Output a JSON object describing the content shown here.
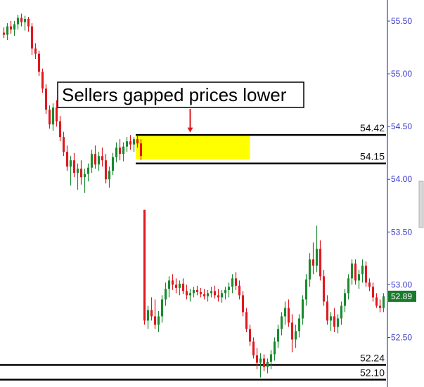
{
  "chart_data": {
    "type": "candlestick",
    "title": "",
    "xlabel": "",
    "ylabel": "",
    "ylim": [
      52.03,
      55.7
    ],
    "y_ticks": [
      {
        "value": 55.5,
        "label": "55.50"
      },
      {
        "value": 55.0,
        "label": "55.00"
      },
      {
        "value": 54.5,
        "label": "54.50"
      },
      {
        "value": 54.0,
        "label": "54.00"
      },
      {
        "value": 53.5,
        "label": "53.50"
      },
      {
        "value": 53.0,
        "label": "53.00"
      },
      {
        "value": 52.5,
        "label": "52.50"
      }
    ],
    "grid": false,
    "colors": {
      "up": "#1a8a2e",
      "down": "#e0191f",
      "axis": "#3a3acd",
      "level": "#000000",
      "highlight": "#ffff00",
      "price_tag": "#1a7a2e"
    },
    "horizontal_levels": [
      {
        "value": 54.42,
        "label": "54.42"
      },
      {
        "value": 54.15,
        "label": "54.15"
      },
      {
        "value": 52.24,
        "label": "52.24"
      },
      {
        "value": 52.1,
        "label": "52.10"
      }
    ],
    "highlight_zone": {
      "x_start": 38,
      "x_end": 70,
      "y_low": 54.19,
      "y_high": 54.42
    },
    "annotation": {
      "text": "Sellers gapped prices lower",
      "arrow_x": 53,
      "arrow_y": 54.43
    },
    "last_price": {
      "value": 52.89,
      "label": "52.89"
    },
    "candles": [
      [
        55.39,
        55.44,
        55.34,
        55.37
      ],
      [
        55.37,
        55.48,
        55.32,
        55.45
      ],
      [
        55.45,
        55.5,
        55.38,
        55.42
      ],
      [
        55.42,
        55.5,
        55.36,
        55.47
      ],
      [
        55.47,
        55.56,
        55.42,
        55.53
      ],
      [
        55.53,
        55.57,
        55.45,
        55.49
      ],
      [
        55.49,
        55.55,
        55.41,
        55.52
      ],
      [
        55.52,
        55.54,
        55.4,
        55.45
      ],
      [
        55.45,
        55.48,
        55.18,
        55.24
      ],
      [
        55.24,
        55.29,
        55.14,
        55.19
      ],
      [
        55.19,
        55.22,
        54.98,
        55.02
      ],
      [
        55.02,
        55.05,
        54.82,
        54.86
      ],
      [
        54.86,
        54.9,
        54.62,
        54.66
      ],
      [
        54.66,
        54.7,
        54.48,
        54.52
      ],
      [
        54.52,
        54.72,
        54.46,
        54.68
      ],
      [
        54.68,
        54.75,
        54.5,
        54.55
      ],
      [
        54.55,
        54.6,
        54.36,
        54.4
      ],
      [
        54.4,
        54.45,
        54.22,
        54.26
      ],
      [
        54.26,
        54.32,
        54.08,
        54.12
      ],
      [
        54.12,
        54.22,
        53.94,
        54.18
      ],
      [
        54.18,
        54.25,
        54.02,
        54.06
      ],
      [
        54.06,
        54.15,
        53.9,
        54.1
      ],
      [
        54.1,
        54.18,
        53.95,
        54.02
      ],
      [
        54.02,
        54.1,
        53.87,
        54.05
      ],
      [
        54.05,
        54.15,
        53.98,
        54.11
      ],
      [
        54.11,
        54.28,
        54.06,
        54.24
      ],
      [
        54.24,
        54.32,
        54.1,
        54.14
      ],
      [
        54.14,
        54.26,
        54.08,
        54.22
      ],
      [
        54.22,
        54.3,
        54.12,
        54.18
      ],
      [
        54.18,
        54.24,
        53.96,
        54.0
      ],
      [
        54.0,
        54.12,
        53.92,
        54.08
      ],
      [
        54.08,
        54.25,
        54.04,
        54.21
      ],
      [
        54.21,
        54.35,
        54.16,
        54.3
      ],
      [
        54.3,
        54.38,
        54.18,
        54.24
      ],
      [
        54.24,
        54.35,
        54.17,
        54.31
      ],
      [
        54.31,
        54.4,
        54.26,
        54.36
      ],
      [
        54.36,
        54.42,
        54.28,
        54.33
      ],
      [
        54.33,
        54.4,
        54.26,
        54.38
      ],
      [
        54.38,
        54.42,
        54.3,
        54.34
      ],
      [
        54.34,
        54.38,
        54.18,
        54.22
      ],
      [
        53.71,
        53.71,
        52.62,
        52.66
      ],
      [
        52.66,
        52.8,
        52.58,
        52.76
      ],
      [
        52.76,
        52.88,
        52.66,
        52.7
      ],
      [
        52.7,
        52.86,
        52.58,
        52.62
      ],
      [
        52.62,
        52.75,
        52.55,
        52.7
      ],
      [
        52.7,
        52.9,
        52.64,
        52.86
      ],
      [
        52.86,
        53.02,
        52.8,
        52.96
      ],
      [
        52.96,
        53.08,
        52.88,
        53.04
      ],
      [
        53.04,
        53.1,
        52.95,
        53.0
      ],
      [
        53.0,
        53.06,
        52.92,
        52.97
      ],
      [
        52.97,
        53.04,
        52.9,
        53.01
      ],
      [
        53.01,
        53.06,
        52.91,
        52.94
      ],
      [
        52.94,
        53.0,
        52.86,
        52.9
      ],
      [
        52.9,
        52.96,
        52.84,
        52.92
      ],
      [
        52.92,
        52.98,
        52.88,
        52.95
      ],
      [
        52.95,
        52.99,
        52.9,
        52.93
      ],
      [
        52.93,
        52.97,
        52.88,
        52.91
      ],
      [
        52.91,
        52.96,
        52.86,
        52.89
      ],
      [
        52.89,
        52.95,
        52.84,
        52.92
      ],
      [
        52.92,
        52.98,
        52.88,
        52.94
      ],
      [
        52.94,
        52.99,
        52.87,
        52.9
      ],
      [
        52.9,
        52.96,
        52.84,
        52.88
      ],
      [
        52.88,
        52.95,
        52.83,
        52.92
      ],
      [
        52.92,
        52.98,
        52.86,
        52.95
      ],
      [
        52.95,
        53.02,
        52.88,
        52.98
      ],
      [
        52.98,
        53.1,
        52.92,
        53.06
      ],
      [
        53.06,
        53.12,
        52.95,
        52.99
      ],
      [
        52.99,
        53.04,
        52.86,
        52.9
      ],
      [
        52.9,
        52.94,
        52.7,
        52.74
      ],
      [
        52.74,
        52.78,
        52.55,
        52.58
      ],
      [
        52.58,
        52.62,
        52.42,
        52.46
      ],
      [
        52.46,
        52.5,
        52.3,
        52.33
      ],
      [
        52.33,
        52.4,
        52.2,
        52.26
      ],
      [
        52.26,
        52.35,
        52.12,
        52.3
      ],
      [
        52.3,
        52.34,
        52.18,
        52.22
      ],
      [
        52.22,
        52.3,
        52.16,
        52.27
      ],
      [
        52.27,
        52.38,
        52.2,
        52.34
      ],
      [
        52.34,
        52.5,
        52.28,
        52.46
      ],
      [
        52.46,
        52.62,
        52.4,
        52.58
      ],
      [
        52.58,
        52.74,
        52.52,
        52.7
      ],
      [
        52.7,
        52.84,
        52.62,
        52.78
      ],
      [
        52.78,
        52.86,
        52.6,
        52.64
      ],
      [
        52.64,
        52.72,
        52.36,
        52.48
      ],
      [
        52.48,
        52.62,
        52.4,
        52.56
      ],
      [
        52.56,
        52.72,
        52.5,
        52.68
      ],
      [
        52.68,
        52.9,
        52.62,
        52.86
      ],
      [
        52.86,
        53.1,
        52.8,
        53.05
      ],
      [
        53.05,
        53.3,
        52.98,
        53.24
      ],
      [
        53.24,
        53.4,
        53.1,
        53.18
      ],
      [
        53.18,
        53.56,
        53.12,
        53.34
      ],
      [
        53.34,
        53.42,
        53.04,
        53.08
      ],
      [
        53.08,
        53.14,
        52.8,
        52.84
      ],
      [
        52.84,
        52.9,
        52.62,
        52.66
      ],
      [
        52.66,
        52.74,
        52.56,
        52.7
      ],
      [
        52.7,
        52.78,
        52.55,
        52.6
      ],
      [
        52.6,
        52.72,
        52.54,
        52.68
      ],
      [
        52.68,
        52.84,
        52.62,
        52.8
      ],
      [
        52.8,
        52.96,
        52.74,
        52.92
      ],
      [
        52.92,
        53.1,
        52.86,
        53.06
      ],
      [
        53.06,
        53.24,
        53.0,
        53.2
      ],
      [
        53.2,
        53.24,
        53.0,
        53.04
      ],
      [
        53.04,
        53.14,
        52.96,
        53.1
      ],
      [
        53.1,
        53.24,
        53.02,
        53.18
      ],
      [
        53.18,
        53.22,
        52.98,
        53.02
      ],
      [
        53.02,
        53.06,
        52.94,
        52.98
      ],
      [
        52.98,
        53.02,
        52.84,
        52.88
      ],
      [
        52.88,
        52.92,
        52.78,
        52.8
      ],
      [
        52.8,
        52.86,
        52.74,
        52.78
      ],
      [
        52.78,
        52.92,
        52.74,
        52.89
      ]
    ]
  }
}
